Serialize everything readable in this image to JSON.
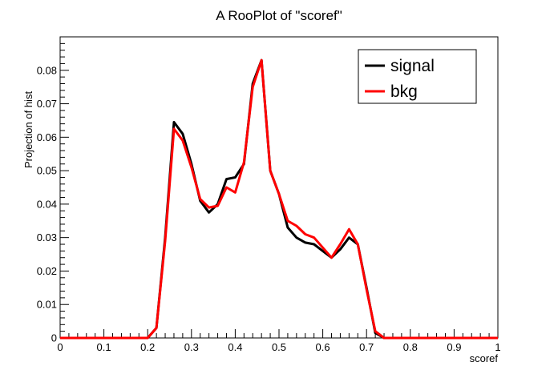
{
  "chart_data": {
    "type": "line",
    "title": "A RooPlot of \"scoref\"",
    "xlabel": "scoref",
    "ylabel": "Projection of hist",
    "xlim": [
      0,
      1
    ],
    "ylim": [
      0,
      0.09
    ],
    "x_ticks": [
      "0",
      "0.1",
      "0.2",
      "0.3",
      "0.4",
      "0.5",
      "0.6",
      "0.7",
      "0.8",
      "0.9",
      "1"
    ],
    "y_ticks": [
      "0",
      "0.01",
      "0.02",
      "0.03",
      "0.04",
      "0.05",
      "0.06",
      "0.07",
      "0.08"
    ],
    "grid": false,
    "legend_position": "top-right",
    "x": [
      0.0,
      0.02,
      0.04,
      0.06,
      0.08,
      0.1,
      0.12,
      0.14,
      0.16,
      0.18,
      0.2,
      0.22,
      0.24,
      0.26,
      0.28,
      0.3,
      0.32,
      0.34,
      0.36,
      0.38,
      0.4,
      0.42,
      0.44,
      0.46,
      0.48,
      0.5,
      0.52,
      0.54,
      0.56,
      0.58,
      0.6,
      0.62,
      0.64,
      0.66,
      0.68,
      0.7,
      0.72,
      0.74,
      0.76,
      0.78,
      0.8,
      0.82,
      0.84,
      0.86,
      0.88,
      0.9,
      0.92,
      0.94,
      0.96,
      0.98,
      1.0
    ],
    "series": [
      {
        "name": "signal",
        "color": "#000000",
        "values": [
          0,
          0,
          0,
          0,
          0,
          0,
          0,
          0,
          0,
          0,
          0,
          0.003,
          0.03,
          0.0645,
          0.061,
          0.052,
          0.041,
          0.0375,
          0.04,
          0.0475,
          0.048,
          0.052,
          0.076,
          0.083,
          0.05,
          0.043,
          0.033,
          0.03,
          0.0285,
          0.028,
          0.026,
          0.024,
          0.0265,
          0.03,
          0.028,
          0.015,
          0.0015,
          0,
          0,
          0,
          0,
          0,
          0,
          0,
          0,
          0,
          0,
          0,
          0,
          0,
          0
        ]
      },
      {
        "name": "bkg",
        "color": "#ff0000",
        "values": [
          0,
          0,
          0,
          0,
          0,
          0,
          0,
          0,
          0,
          0,
          0,
          0.003,
          0.029,
          0.0625,
          0.059,
          0.051,
          0.0415,
          0.039,
          0.0395,
          0.045,
          0.0435,
          0.0525,
          0.075,
          0.083,
          0.05,
          0.043,
          0.035,
          0.0335,
          0.031,
          0.03,
          0.027,
          0.024,
          0.028,
          0.0325,
          0.028,
          0.0145,
          0.002,
          0,
          0,
          0,
          0,
          0,
          0,
          0,
          0,
          0,
          0,
          0,
          0,
          0,
          0
        ]
      }
    ]
  }
}
